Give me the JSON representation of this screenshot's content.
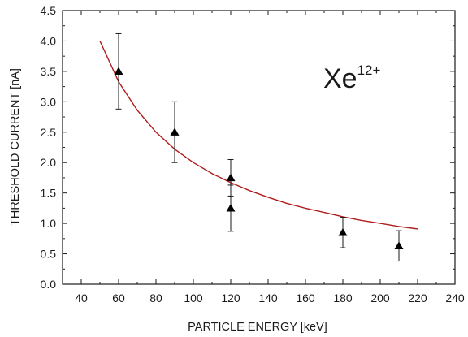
{
  "chart_data": {
    "type": "scatter",
    "xlabel": "PARTICLE ENERGY [keV]",
    "ylabel": "THRESHOLD CURRENT [nA]",
    "xlim": [
      30,
      240
    ],
    "ylim": [
      0.0,
      4.5
    ],
    "x_ticks": [
      "40",
      "60",
      "80",
      "100",
      "120",
      "140",
      "160",
      "180",
      "200",
      "220",
      "240"
    ],
    "y_ticks": [
      "0.0",
      "0.5",
      "1.0",
      "1.5",
      "2.0",
      "2.5",
      "3.0",
      "3.5",
      "4.0",
      "4.5"
    ],
    "annotation": {
      "main": "Xe",
      "superscript": "12+"
    },
    "grid": false,
    "series": [
      {
        "marker": "triangle",
        "color": "#000000",
        "points": [
          {
            "x": 60,
            "y": 3.5,
            "err_low": 2.88,
            "err_high": 4.12
          },
          {
            "x": 90,
            "y": 2.5,
            "err_low": 2.0,
            "err_high": 3.0
          },
          {
            "x": 120,
            "y": 1.75,
            "err_low": 1.45,
            "err_high": 2.05
          },
          {
            "x": 120,
            "y": 1.25,
            "err_low": 0.87,
            "err_high": 1.63
          },
          {
            "x": 180,
            "y": 0.85,
            "err_low": 0.6,
            "err_high": 1.1
          },
          {
            "x": 210,
            "y": 0.63,
            "err_low": 0.38,
            "err_high": 0.88
          }
        ]
      }
    ],
    "fit_curve": {
      "type": "line",
      "color": "#b01c1c",
      "x": [
        50,
        60,
        70,
        80,
        90,
        100,
        110,
        120,
        130,
        140,
        150,
        160,
        170,
        180,
        190,
        200,
        210,
        220
      ],
      "y": [
        4.0,
        3.33,
        2.86,
        2.5,
        2.22,
        2.0,
        1.82,
        1.67,
        1.54,
        1.43,
        1.33,
        1.25,
        1.18,
        1.11,
        1.05,
        1.0,
        0.95,
        0.91
      ]
    }
  }
}
